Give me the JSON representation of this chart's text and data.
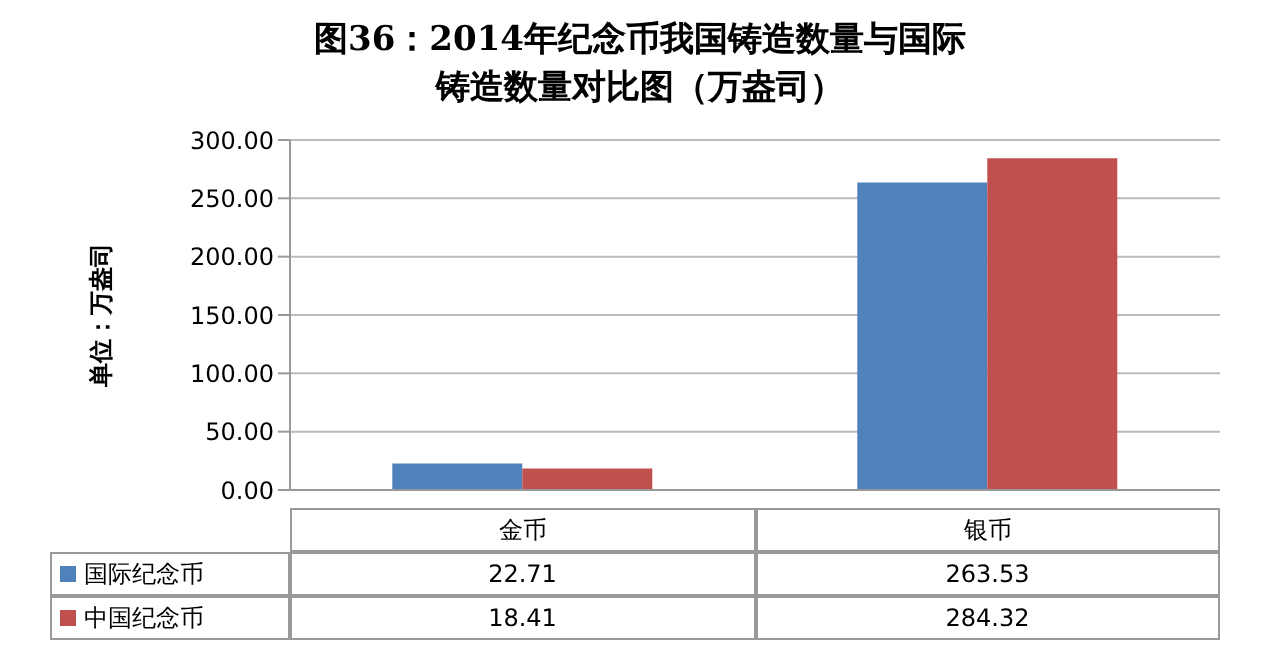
{
  "chart_data": {
    "type": "bar",
    "title": "图36：2014年纪念币我国铸造数量与国际铸造数量对比图（万盎司）",
    "ylabel": "单位：万盎司",
    "categories": [
      "金币",
      "银币"
    ],
    "series": [
      {
        "name": "国际纪念币",
        "color": "#4f81bd",
        "values": [
          22.71,
          263.53
        ]
      },
      {
        "name": "中国纪念币",
        "color": "#c0504d",
        "values": [
          18.41,
          284.32
        ]
      }
    ],
    "ylim": [
      0,
      300
    ],
    "yticks": [
      {
        "value": 0,
        "label": "0.00"
      },
      {
        "value": 50,
        "label": "50.00"
      },
      {
        "value": 100,
        "label": "100.00"
      },
      {
        "value": 150,
        "label": "150.00"
      },
      {
        "value": 200,
        "label": "200.00"
      },
      {
        "value": 250,
        "label": "250.00"
      },
      {
        "value": 300,
        "label": "300.00"
      }
    ],
    "grid": "y",
    "legend": "bottom",
    "data_labels": true
  }
}
